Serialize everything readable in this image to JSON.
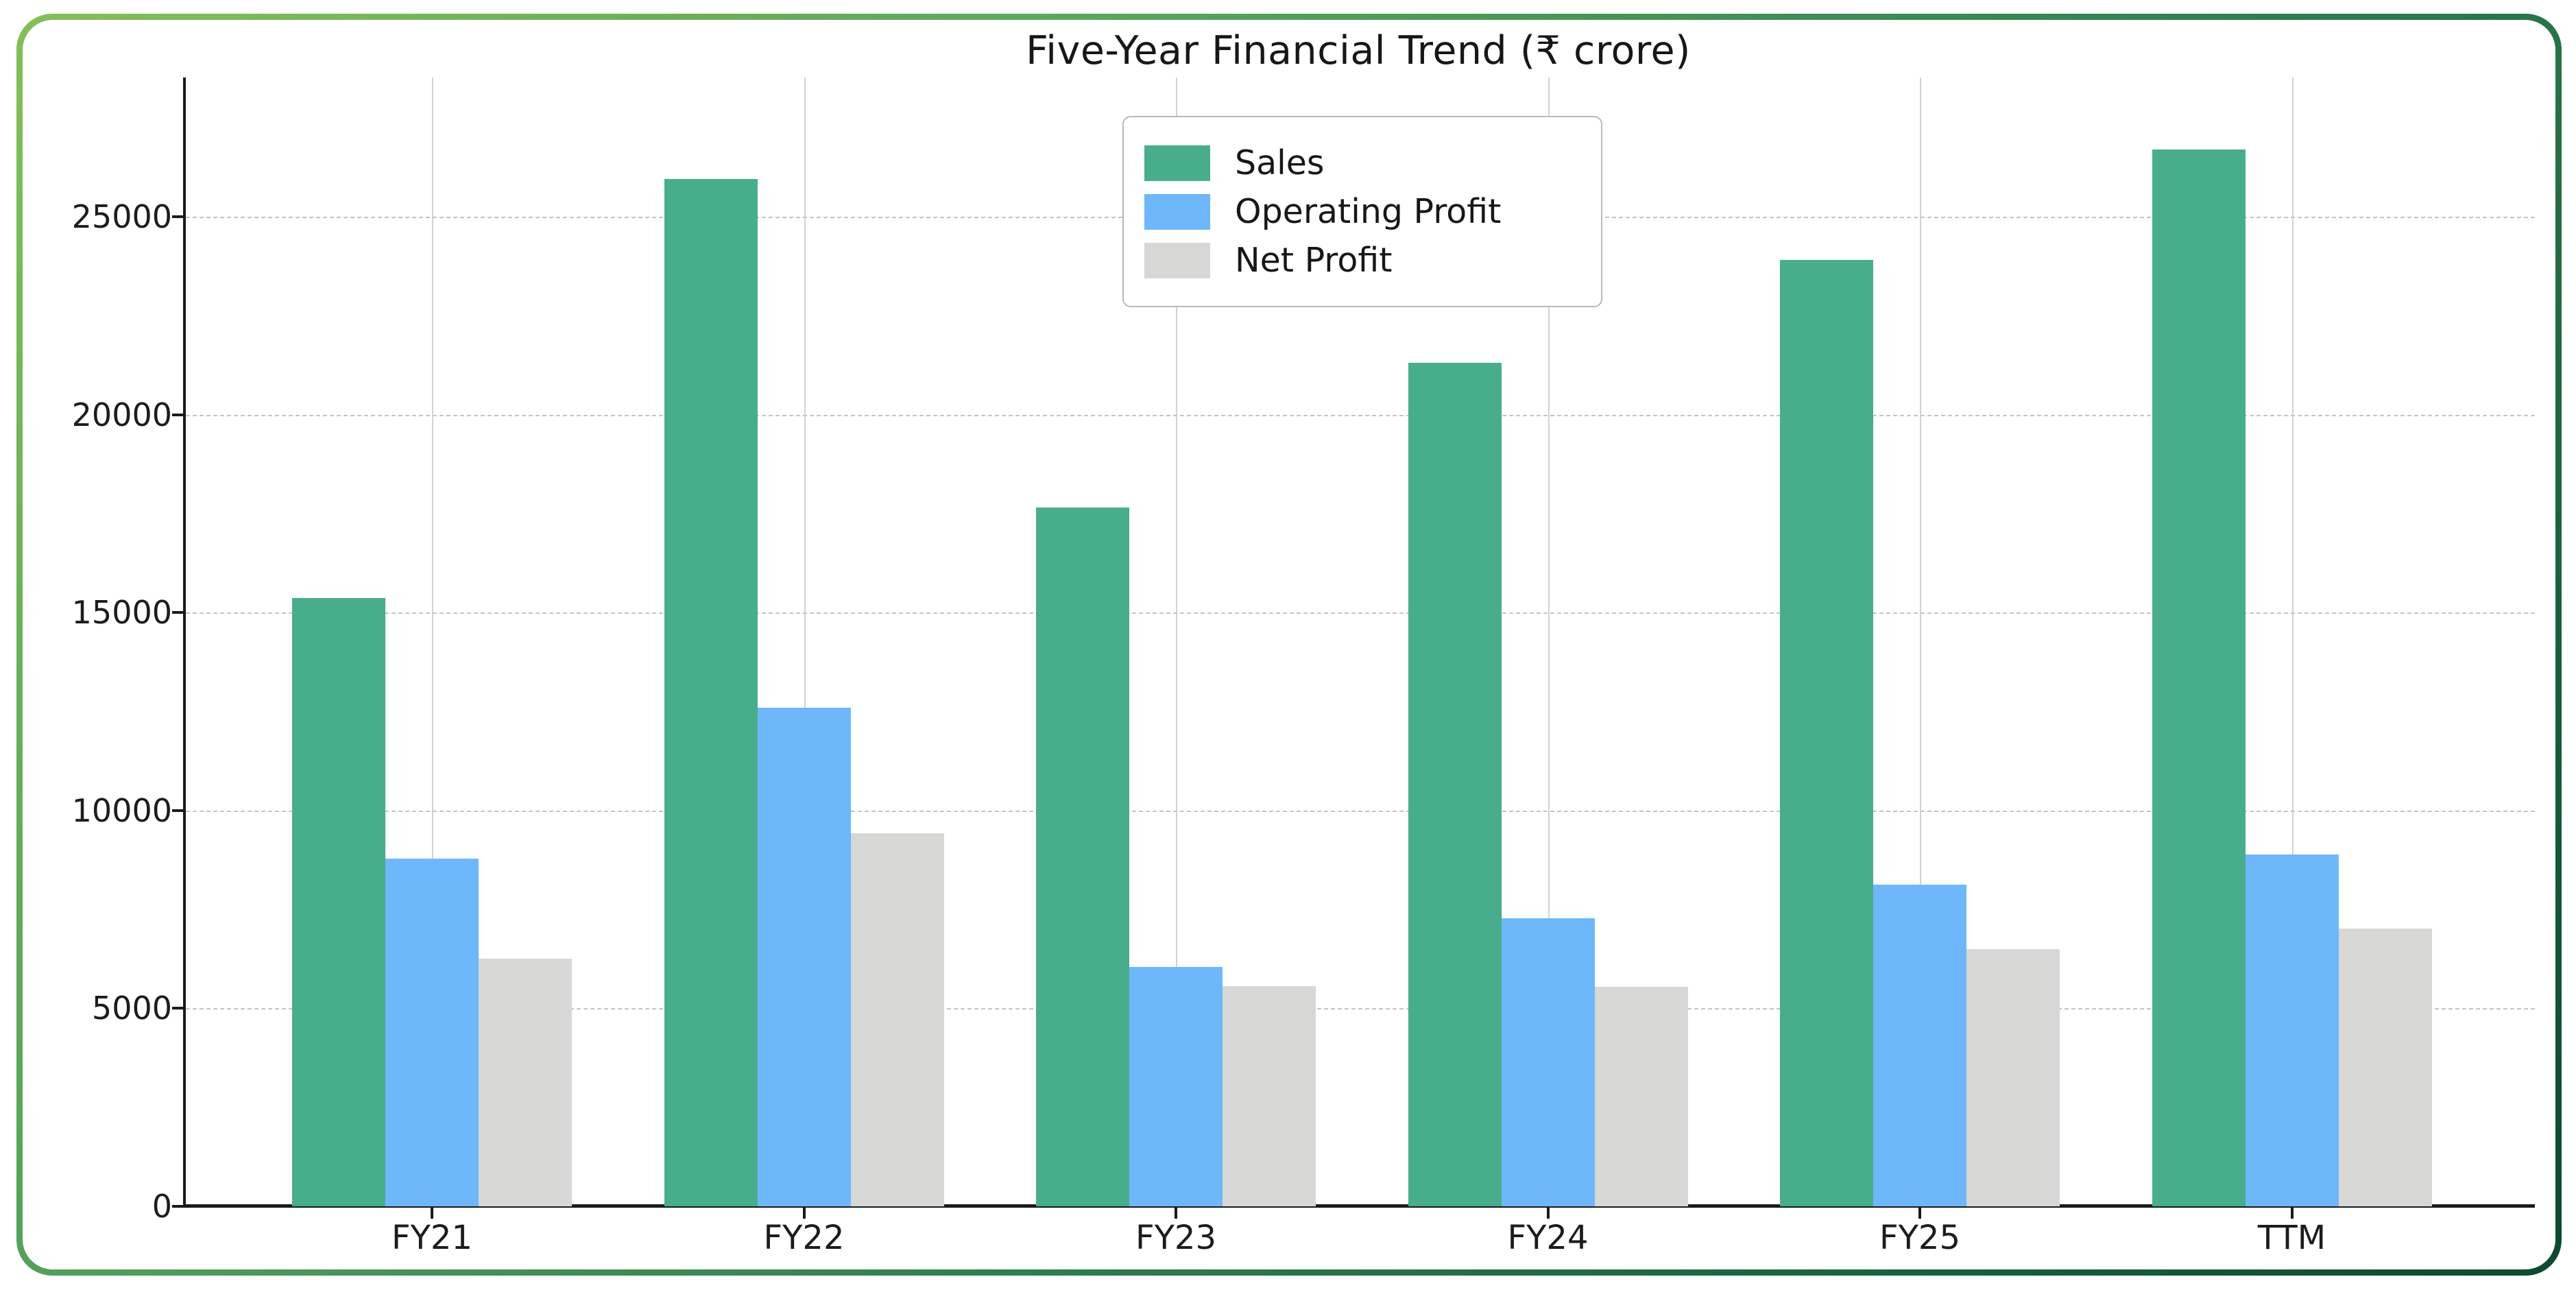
{
  "chart": {
    "title": "Five-Year Financial Trend (₹ crore)"
  },
  "chart_data": {
    "type": "bar",
    "title": "Five-Year Financial Trend (₹ crore)",
    "categories": [
      "FY21",
      "FY22",
      "FY23",
      "FY24",
      "FY25",
      "TTM"
    ],
    "series": [
      {
        "name": "Sales",
        "color": "#48ad8a",
        "values": [
          15370,
          25960,
          17660,
          21310,
          23900,
          26700
        ]
      },
      {
        "name": "Operating Profit",
        "color": "#6eb7fa",
        "values": [
          8780,
          12600,
          6050,
          7280,
          8130,
          8880
        ]
      },
      {
        "name": "Net Profit",
        "color": "#d7d7d5",
        "values": [
          6260,
          9420,
          5560,
          5540,
          6490,
          7010
        ]
      }
    ],
    "xlabel": "",
    "ylabel": "",
    "ylim": [
      0,
      28500
    ],
    "yticks": [
      0,
      5000,
      10000,
      15000,
      20000,
      25000
    ],
    "grid": "on",
    "legend_position": "upper center"
  }
}
